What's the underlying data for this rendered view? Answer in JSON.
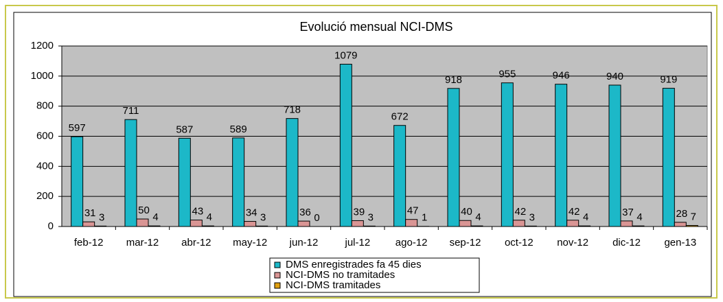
{
  "chart_data": {
    "type": "bar",
    "title": "Evolució mensual NCI-DMS",
    "categories": [
      "feb-12",
      "mar-12",
      "abr-12",
      "may-12",
      "jun-12",
      "jul-12",
      "ago-12",
      "sep-12",
      "oct-12",
      "nov-12",
      "dic-12",
      "gen-13"
    ],
    "series": [
      {
        "name": "DMS enregistrades fa 45 dies",
        "color": "#1cb8c8",
        "values": [
          597,
          711,
          587,
          589,
          718,
          1079,
          672,
          918,
          955,
          946,
          940,
          919
        ]
      },
      {
        "name": "NCI-DMS no tramitades",
        "color": "#d99594",
        "values": [
          31,
          50,
          43,
          34,
          36,
          39,
          47,
          40,
          42,
          42,
          37,
          28
        ]
      },
      {
        "name": "NCI-DMS tramitades",
        "color": "#e0a010",
        "values": [
          3,
          4,
          4,
          3,
          0,
          3,
          1,
          4,
          3,
          4,
          4,
          7
        ]
      }
    ],
    "ylim": [
      0,
      1200
    ],
    "yticks": [
      0,
      200,
      400,
      600,
      800,
      1000,
      1200
    ],
    "grid": true,
    "legend": "bottom"
  }
}
